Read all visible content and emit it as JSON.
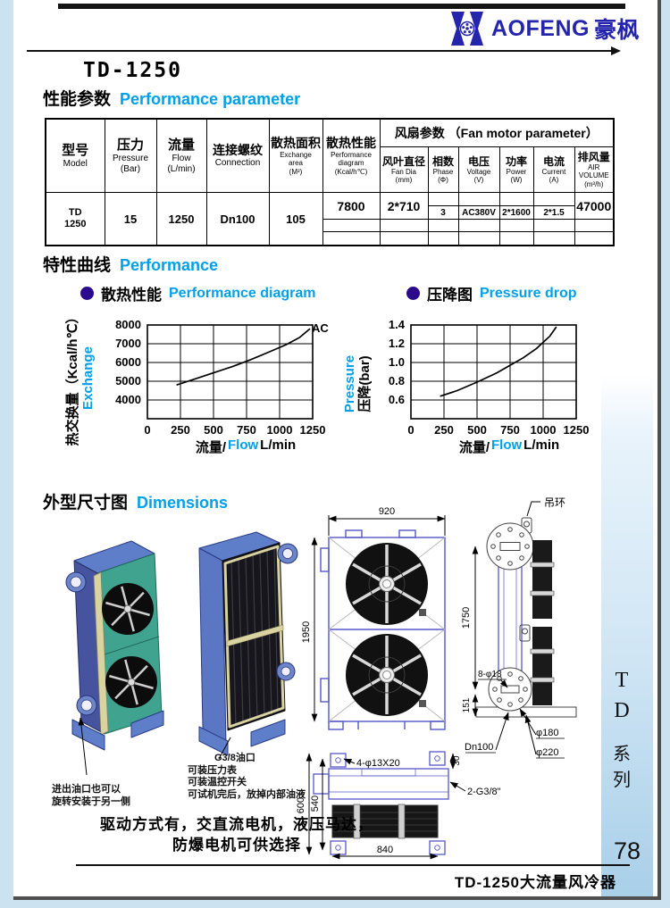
{
  "accent": {
    "cyan": "#00a0e9",
    "logo_blue": "#2424ad",
    "bullet_purple": "#2b0b8c"
  },
  "header": {
    "logo_en": "AOFENG",
    "logo_cn": "豪枫",
    "model_title": "TD-1250"
  },
  "sections": {
    "s1_cn": "性能参数",
    "s1_en": "Performance  parameter",
    "s2_cn": "特性曲线",
    "s2_en": "Performance",
    "s3_cn": "外型尺寸图",
    "s3_en": "Dimensions"
  },
  "table": {
    "fan_group_label": "风扇参数 （Fan motor parameter）",
    "cols": {
      "model_cn": "型号",
      "model_en": "Model",
      "pressure_cn": "压力",
      "pressure_en": "Pressure",
      "pressure_unit": "(Bar)",
      "flow_cn": "流量",
      "flow_en": "Flow",
      "flow_unit": "(L/min)",
      "conn_cn": "连接螺纹",
      "conn_en": "Connection",
      "area_cn": "散热面积",
      "area_en": "Exchange",
      "area_en2": "area",
      "area_unit": "(M²)",
      "perf_cn": "散热性能",
      "perf_en": "Performance",
      "perf_en2": "diagram",
      "perf_unit": "(Kcal/h℃)",
      "fandia_cn": "风叶直径",
      "fandia_en": "Fan Dia",
      "fandia_unit": "(mm)",
      "phase_cn": "相数",
      "phase_en": "Phase",
      "phase_unit": "(Φ)",
      "volt_cn": "电压",
      "volt_en": "Voltage",
      "volt_unit": "(V)",
      "power_cn": "功率",
      "power_en": "Power",
      "power_unit": "(W)",
      "current_cn": "电流",
      "current_en": "Current",
      "current_unit": "(A)",
      "air_cn": "排风量",
      "air_en": "AIR",
      "air_en2": "VOLUME",
      "air_unit": "(m³/h)"
    },
    "row": {
      "model_l1": "TD",
      "model_l2": "1250",
      "pressure": "15",
      "flow": "1250",
      "conn": "Dn100",
      "area": "105",
      "perf": "7800",
      "fandia": "2*710",
      "phase": "3",
      "volt": "AC380V",
      "power": "2*1600",
      "current": "2*1.5",
      "air": "47000"
    }
  },
  "chart_data": [
    {
      "type": "line",
      "title_cn": "散热性能",
      "title_en": "Performance diagram",
      "ylabel_parts": [
        {
          "text": "热交换量（Kcal/h℃）",
          "color": "#000000"
        },
        {
          "text": "Exchange",
          "color": "#00a0e9"
        }
      ],
      "xlabel_parts": [
        {
          "text": "流量/",
          "color": "#000000"
        },
        {
          "text": "Flow",
          "color": "#00a0e9"
        },
        {
          "text": " L/min",
          "color": "#000000"
        }
      ],
      "xlim": [
        0,
        1250
      ],
      "ylim": [
        3000,
        8000
      ],
      "xticks": [
        0,
        250,
        500,
        750,
        1000,
        1250
      ],
      "xtick_labels": [
        "0",
        "250",
        "500",
        "750",
        "1000",
        "1250"
      ],
      "yticks": [
        8000,
        7000,
        6000,
        5000,
        4000
      ],
      "ytick_labels": [
        "8000",
        "7000",
        "6000",
        "5000",
        "4000"
      ],
      "series_label": "AC",
      "grid": true,
      "legend_position": "none",
      "points": [
        [
          220,
          4800
        ],
        [
          350,
          5100
        ],
        [
          500,
          5450
        ],
        [
          650,
          5800
        ],
        [
          780,
          6150
        ],
        [
          900,
          6500
        ],
        [
          1050,
          6950
        ],
        [
          1150,
          7330
        ],
        [
          1230,
          7800
        ]
      ]
    },
    {
      "type": "line",
      "title_cn": "压降图",
      "title_en": "Pressure drop",
      "ylabel_parts": [
        {
          "text": "Pressure",
          "color": "#00a0e9"
        },
        {
          "text": "压降(bar)",
          "color": "#000000"
        }
      ],
      "xlabel_parts": [
        {
          "text": "流量/",
          "color": "#000000"
        },
        {
          "text": "Flow",
          "color": "#00a0e9"
        },
        {
          "text": " L/min",
          "color": "#000000"
        }
      ],
      "xlim": [
        0,
        1250
      ],
      "ylim": [
        0.4,
        1.4
      ],
      "xticks": [
        0,
        250,
        500,
        750,
        1000,
        1250
      ],
      "xtick_labels": [
        "0",
        "250",
        "500",
        "750",
        "1000",
        "1250"
      ],
      "yticks": [
        1.4,
        1.2,
        1.0,
        0.8,
        0.6
      ],
      "ytick_labels": [
        "1.4",
        "1.2",
        "1.0",
        "0.8",
        "0.6"
      ],
      "series_label": "",
      "grid": true,
      "legend_position": "none",
      "points": [
        [
          220,
          0.64
        ],
        [
          350,
          0.7
        ],
        [
          500,
          0.79
        ],
        [
          650,
          0.89
        ],
        [
          750,
          0.97
        ],
        [
          850,
          1.05
        ],
        [
          950,
          1.15
        ],
        [
          1050,
          1.28
        ],
        [
          1100,
          1.38
        ]
      ]
    }
  ],
  "drawings": {
    "front_width": "920",
    "front_height": "1950",
    "side_height": "1750",
    "side_offset": "151",
    "side_holes": "8-φ18",
    "lifting_ring": "吊环",
    "flange_dn": "Dn100",
    "flange_d180": "φ180",
    "flange_d220": "φ220",
    "top_depth": "600",
    "top_inner": "540",
    "top_width": "840",
    "top_offset": "30",
    "top_holes": "4-φ13X20",
    "oil_port": "2-G3/8\""
  },
  "notes": {
    "left_l1": "进出油口也可以",
    "left_l2": "旋转安装于另一侧",
    "right_l1": "G3/8油口",
    "right_l2": "可装压力表",
    "right_l3": "可装温控开关",
    "right_l4": "可试机完后，放掉内部油液",
    "drive_l1": "驱动方式有，交直流电机，液压马达，",
    "drive_l2": "防爆电机可供选择"
  },
  "sidebar": {
    "c1": "T",
    "c2": "D",
    "c3": "系",
    "c4": "列",
    "page_num": "78"
  },
  "footer": {
    "title": "TD-1250大流量风冷器"
  }
}
